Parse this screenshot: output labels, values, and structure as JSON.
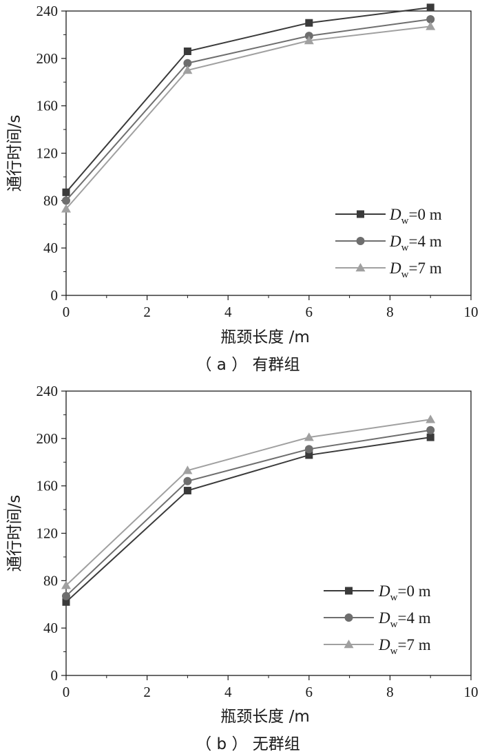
{
  "chart_data": [
    {
      "type": "line",
      "caption": "（ a ） 有群组",
      "xlabel": "瓶颈长度 /m",
      "ylabel": "通行时间/s",
      "xlim": [
        0,
        10
      ],
      "ylim": [
        0,
        240
      ],
      "xticks": [
        0,
        2,
        4,
        6,
        8,
        10
      ],
      "yticks": [
        0,
        40,
        80,
        120,
        160,
        200,
        240
      ],
      "legend_position": "bottom-right",
      "x": [
        0,
        3,
        6,
        9
      ],
      "series": [
        {
          "name": "D_w=0 m",
          "legend": {
            "italic": "D",
            "sub": "w",
            "rest": "=0 m"
          },
          "marker": "square",
          "color": "#3a3a3a",
          "values": [
            87,
            206,
            230,
            243
          ]
        },
        {
          "name": "D_w=4 m",
          "legend": {
            "italic": "D",
            "sub": "w",
            "rest": "=4 m"
          },
          "marker": "circle",
          "color": "#6e6e6e",
          "values": [
            80,
            196,
            219,
            233
          ]
        },
        {
          "name": "D_w=7 m",
          "legend": {
            "italic": "D",
            "sub": "w",
            "rest": "=7 m"
          },
          "marker": "triangle",
          "color": "#a0a0a0",
          "values": [
            73,
            190,
            215,
            227
          ]
        }
      ]
    },
    {
      "type": "line",
      "caption": "（ b ） 无群组",
      "xlabel": "瓶颈长度 /m",
      "ylabel": "通行时间/s",
      "xlim": [
        0,
        10
      ],
      "ylim": [
        0,
        240
      ],
      "xticks": [
        0,
        2,
        4,
        6,
        8,
        10
      ],
      "yticks": [
        0,
        40,
        80,
        120,
        160,
        200,
        240
      ],
      "legend_position": "bottom-right",
      "x": [
        0,
        3,
        6,
        9
      ],
      "series": [
        {
          "name": "D_w=0 m",
          "legend": {
            "italic": "D",
            "sub": "w",
            "rest": "=0 m"
          },
          "marker": "square",
          "color": "#3a3a3a",
          "values": [
            62,
            156,
            186,
            201
          ]
        },
        {
          "name": "D_w=4 m",
          "legend": {
            "italic": "D",
            "sub": "w",
            "rest": "=4 m"
          },
          "marker": "circle",
          "color": "#6e6e6e",
          "values": [
            67,
            164,
            191,
            207
          ]
        },
        {
          "name": "D_w=7 m",
          "legend": {
            "italic": "D",
            "sub": "w",
            "rest": "=7 m"
          },
          "marker": "triangle",
          "color": "#a0a0a0",
          "values": [
            76,
            173,
            201,
            216
          ]
        }
      ]
    }
  ]
}
